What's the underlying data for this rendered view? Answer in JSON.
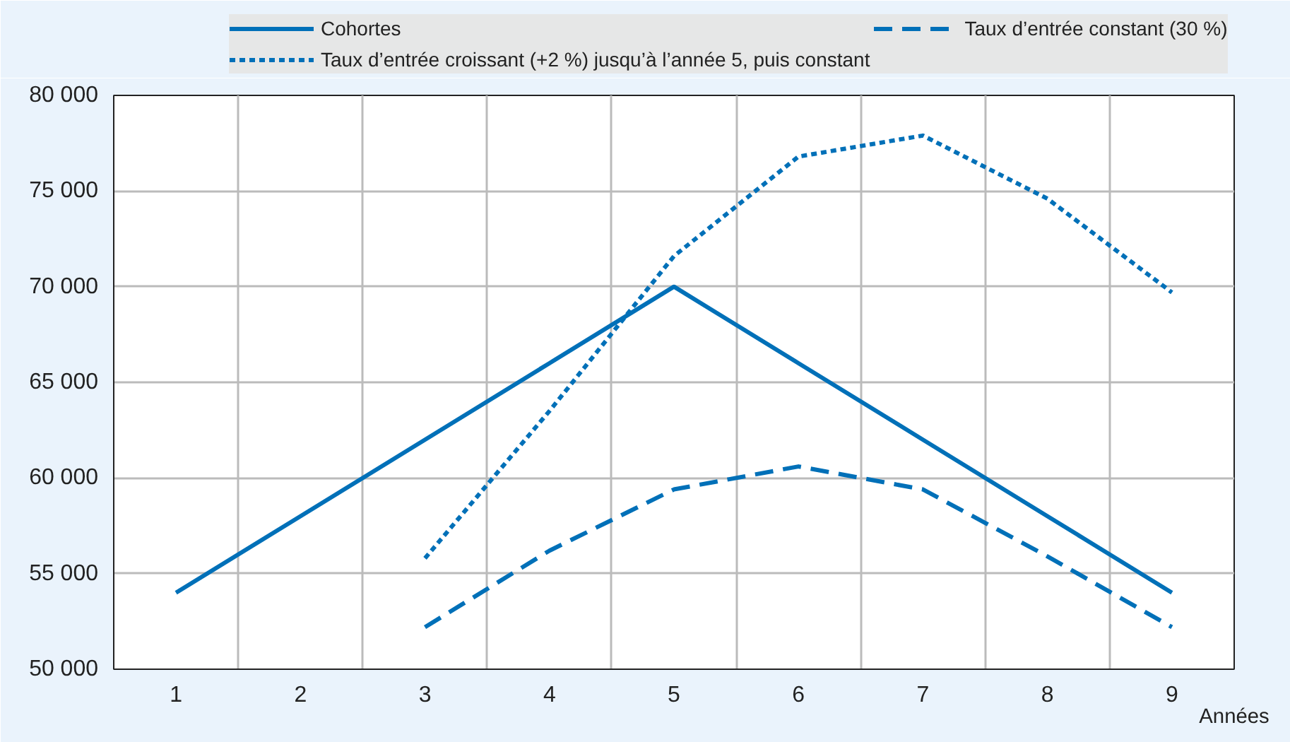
{
  "chart_data": {
    "type": "line",
    "xlabel": "Années",
    "categories": [
      "1",
      "2",
      "3",
      "4",
      "5",
      "6",
      "7",
      "8",
      "9"
    ],
    "series": [
      {
        "name": "Cohortes",
        "color": "#0070b8",
        "line_style": "solid",
        "values": [
          54000,
          58000,
          62000,
          66000,
          70000,
          66000,
          62000,
          58000,
          54000
        ]
      },
      {
        "name": "Taux d’entrée constant (30 %)",
        "color": "#0070b8",
        "line_style": "dashed",
        "values": [
          null,
          null,
          52200,
          56200,
          59400,
          60600,
          59400,
          55900,
          52200
        ]
      },
      {
        "name": "Taux d’entrée croissant (+2 %) jusqu’à l’année 5, puis constant",
        "color": "#0070b8",
        "line_style": "dotted",
        "values": [
          null,
          null,
          55800,
          63500,
          71600,
          76800,
          77900,
          74600,
          69700
        ]
      }
    ],
    "ylim": [
      50000,
      80000
    ],
    "yticks": [
      {
        "value": 50000,
        "label": "50 000"
      },
      {
        "value": 55000,
        "label": "55 000"
      },
      {
        "value": 60000,
        "label": "60 000"
      },
      {
        "value": 65000,
        "label": "65 000"
      },
      {
        "value": 70000,
        "label": "70 000"
      },
      {
        "value": 75000,
        "label": "75 000"
      },
      {
        "value": 80000,
        "label": "80 000"
      }
    ],
    "grid": true,
    "legend": "top"
  }
}
